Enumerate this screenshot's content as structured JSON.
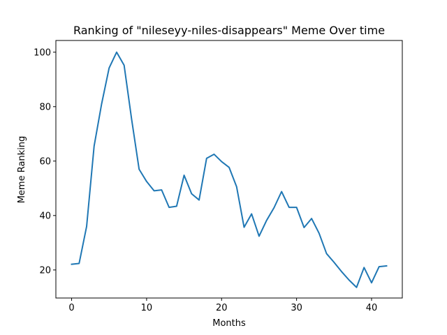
{
  "chart_data": {
    "type": "line",
    "title": "Ranking of \"nileseyy-niles-disappears\" Meme Over time",
    "xlabel": "Months",
    "ylabel": "Meme Ranking",
    "xlim": [
      -2.1,
      44.1
    ],
    "ylim": [
      9.7,
      104.3
    ],
    "xticks": [
      0,
      10,
      20,
      30,
      40
    ],
    "yticks": [
      20,
      40,
      60,
      80,
      100
    ],
    "grid": false,
    "color": "#1f77b4",
    "series": [
      {
        "x": [
          0,
          1,
          2,
          3,
          4,
          5,
          6,
          7,
          8,
          9,
          10,
          11,
          12,
          13,
          14,
          15,
          16,
          17,
          18,
          19,
          20,
          21,
          22,
          23,
          24,
          25,
          26,
          27,
          28,
          29,
          30,
          31,
          32,
          33,
          34,
          35,
          36,
          37,
          38,
          39,
          40,
          41,
          42
        ],
        "values": [
          22.1,
          22.4,
          36,
          65.5,
          81,
          94.2,
          100,
          95.2,
          75.4,
          57,
          52.5,
          49.1,
          49.4,
          43,
          43.4,
          54.8,
          48,
          45.7,
          61,
          62.5,
          59.8,
          57.7,
          50.6,
          35.7,
          40.6,
          32.4,
          38.2,
          42.9,
          48.8,
          43,
          43,
          35.6,
          38.9,
          33.5,
          26,
          22.8,
          19.4,
          16.3,
          13.6,
          20.9,
          15.3,
          21.2,
          21.5
        ]
      }
    ]
  }
}
